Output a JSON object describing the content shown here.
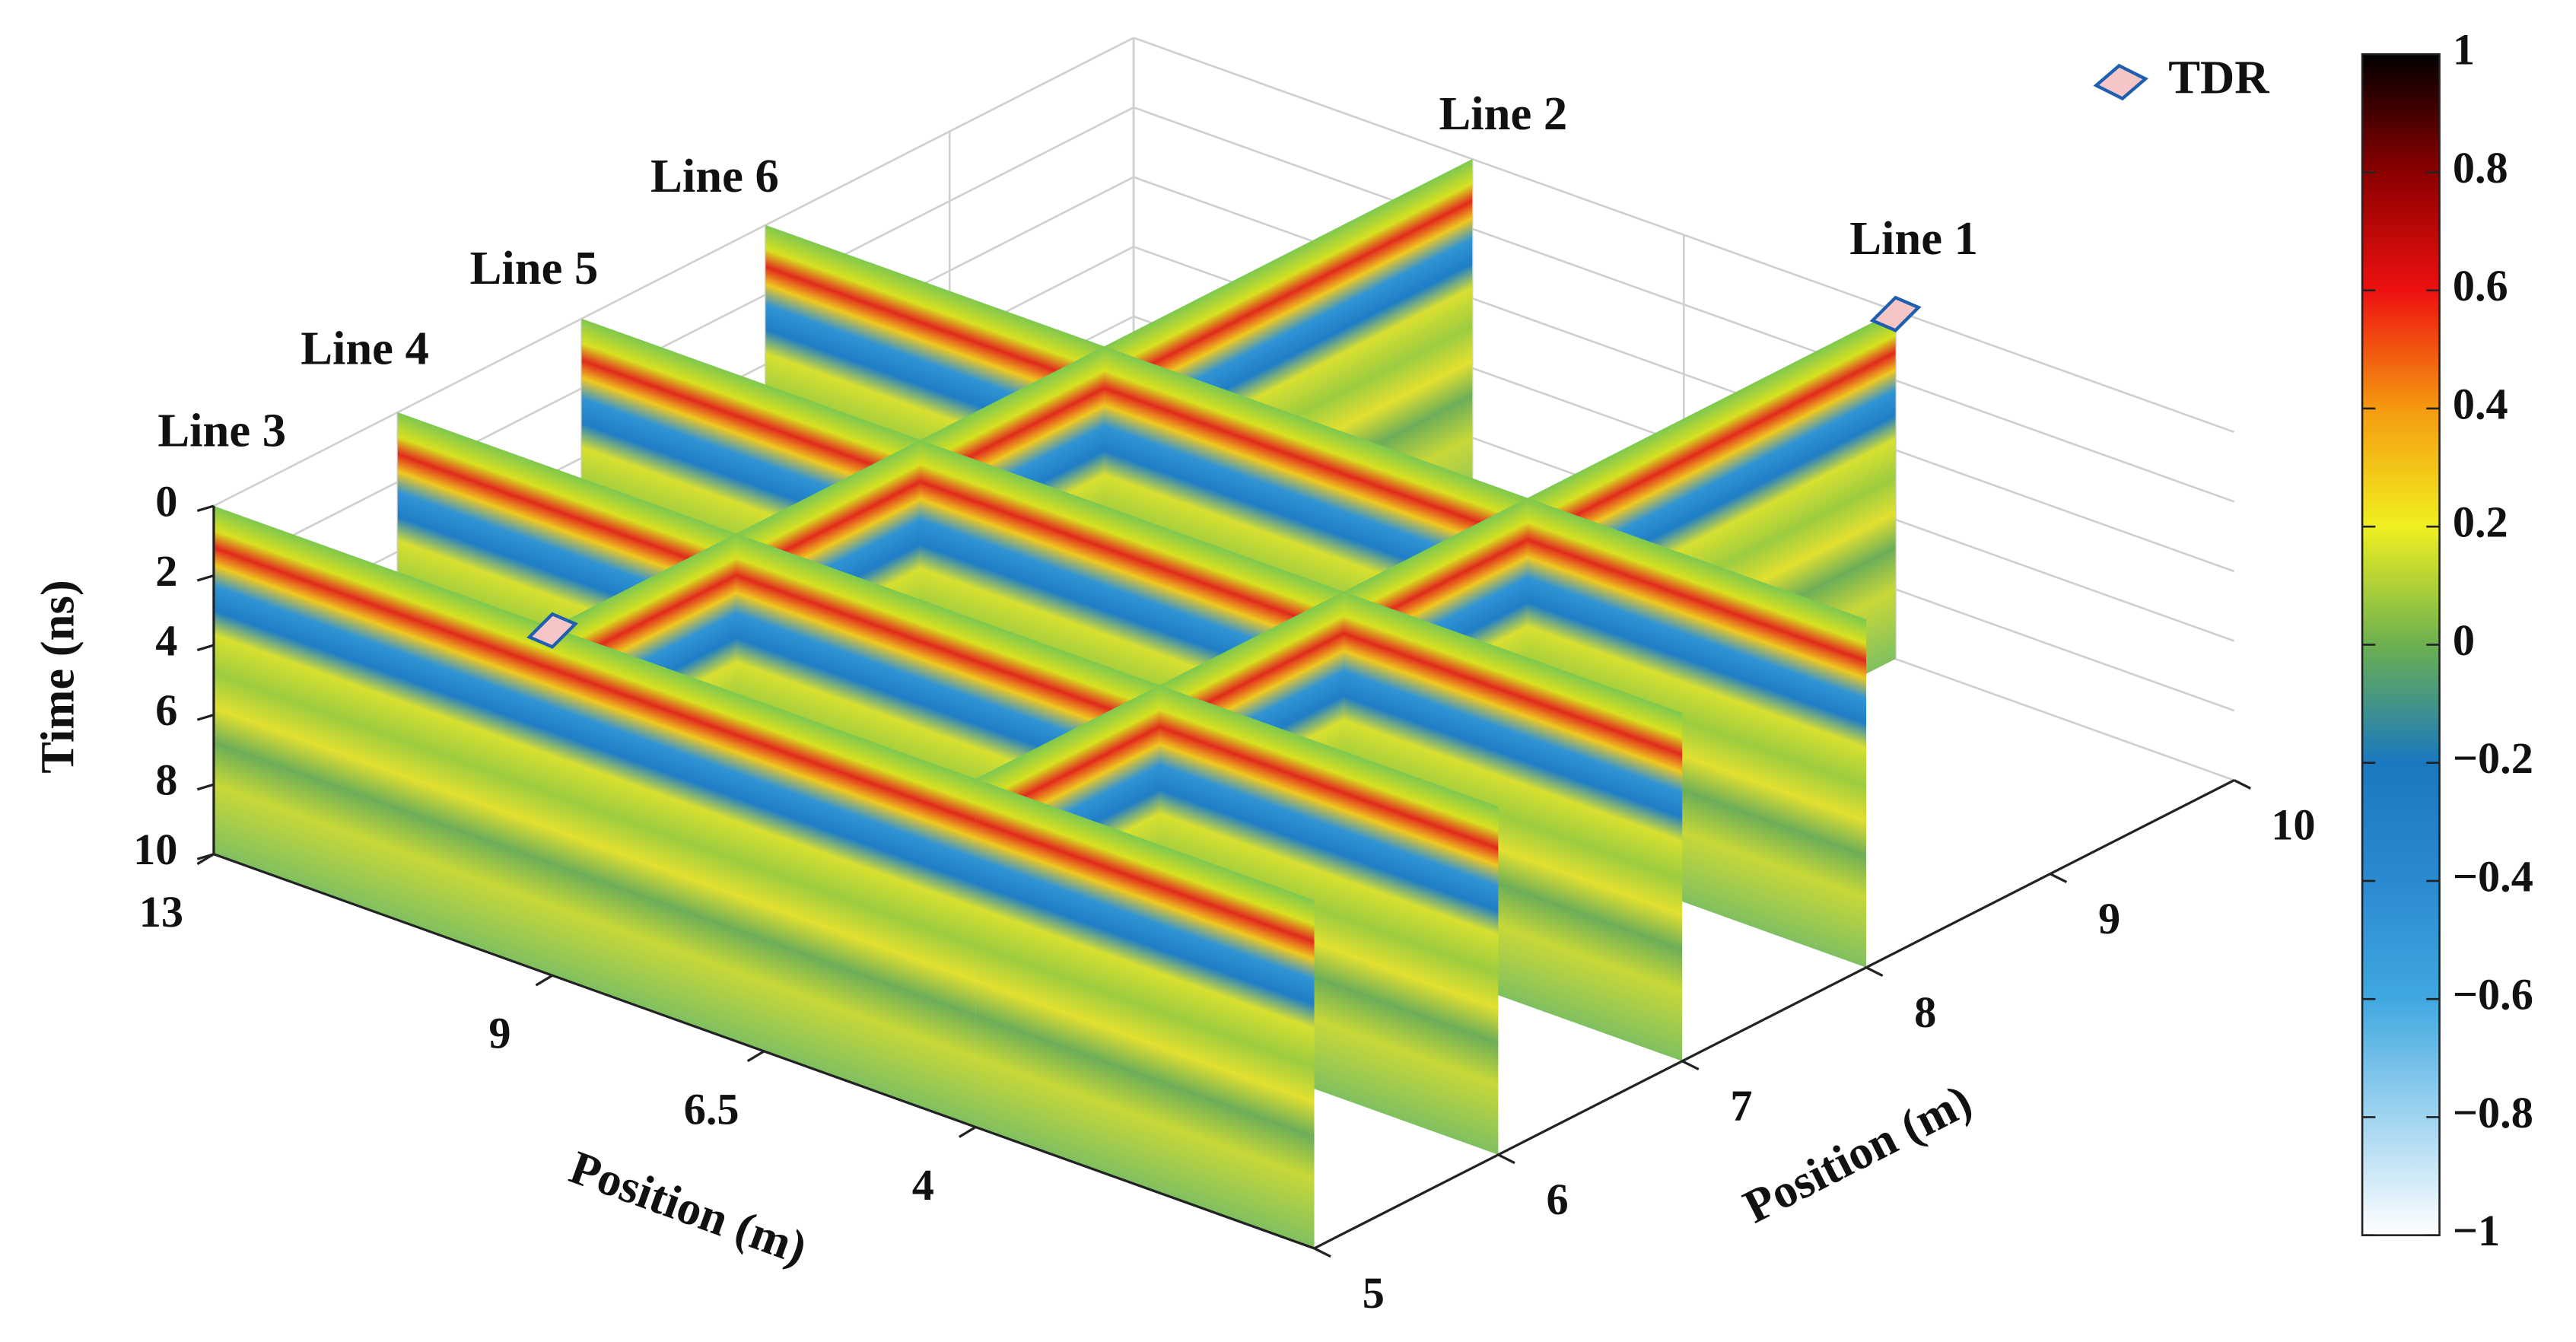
{
  "chart_data": {
    "type": "gpr-3d",
    "zlabel": "Time (ns)",
    "zlim": [
      0,
      10
    ],
    "zticks": [
      0,
      2,
      4,
      6,
      8,
      10
    ],
    "xlabel": "Position (m)",
    "xlim": [
      13,
      0
    ],
    "xticks": [
      13,
      9,
      6.5,
      4
    ],
    "ylabel": "Position (m)",
    "ylim": [
      5,
      10
    ],
    "yticks": [
      5,
      6,
      7,
      8,
      9,
      10
    ],
    "annotations": [
      "Line 1",
      "Line 2",
      "Line 3",
      "Line 4",
      "Line 5",
      "Line 6"
    ],
    "legend": "TDR",
    "clim": [
      -1,
      1
    ],
    "cticks": [
      1,
      0.8,
      0.6,
      0.4,
      0.2,
      0,
      {
        "value": -0.2,
        "label": "−0.2"
      },
      {
        "value": -0.4,
        "label": "−0.4"
      },
      {
        "value": -0.6,
        "label": "−0.6"
      },
      {
        "value": -0.8,
        "label": "−0.8"
      },
      {
        "value": -1,
        "label": "−1"
      }
    ],
    "grid": true
  }
}
